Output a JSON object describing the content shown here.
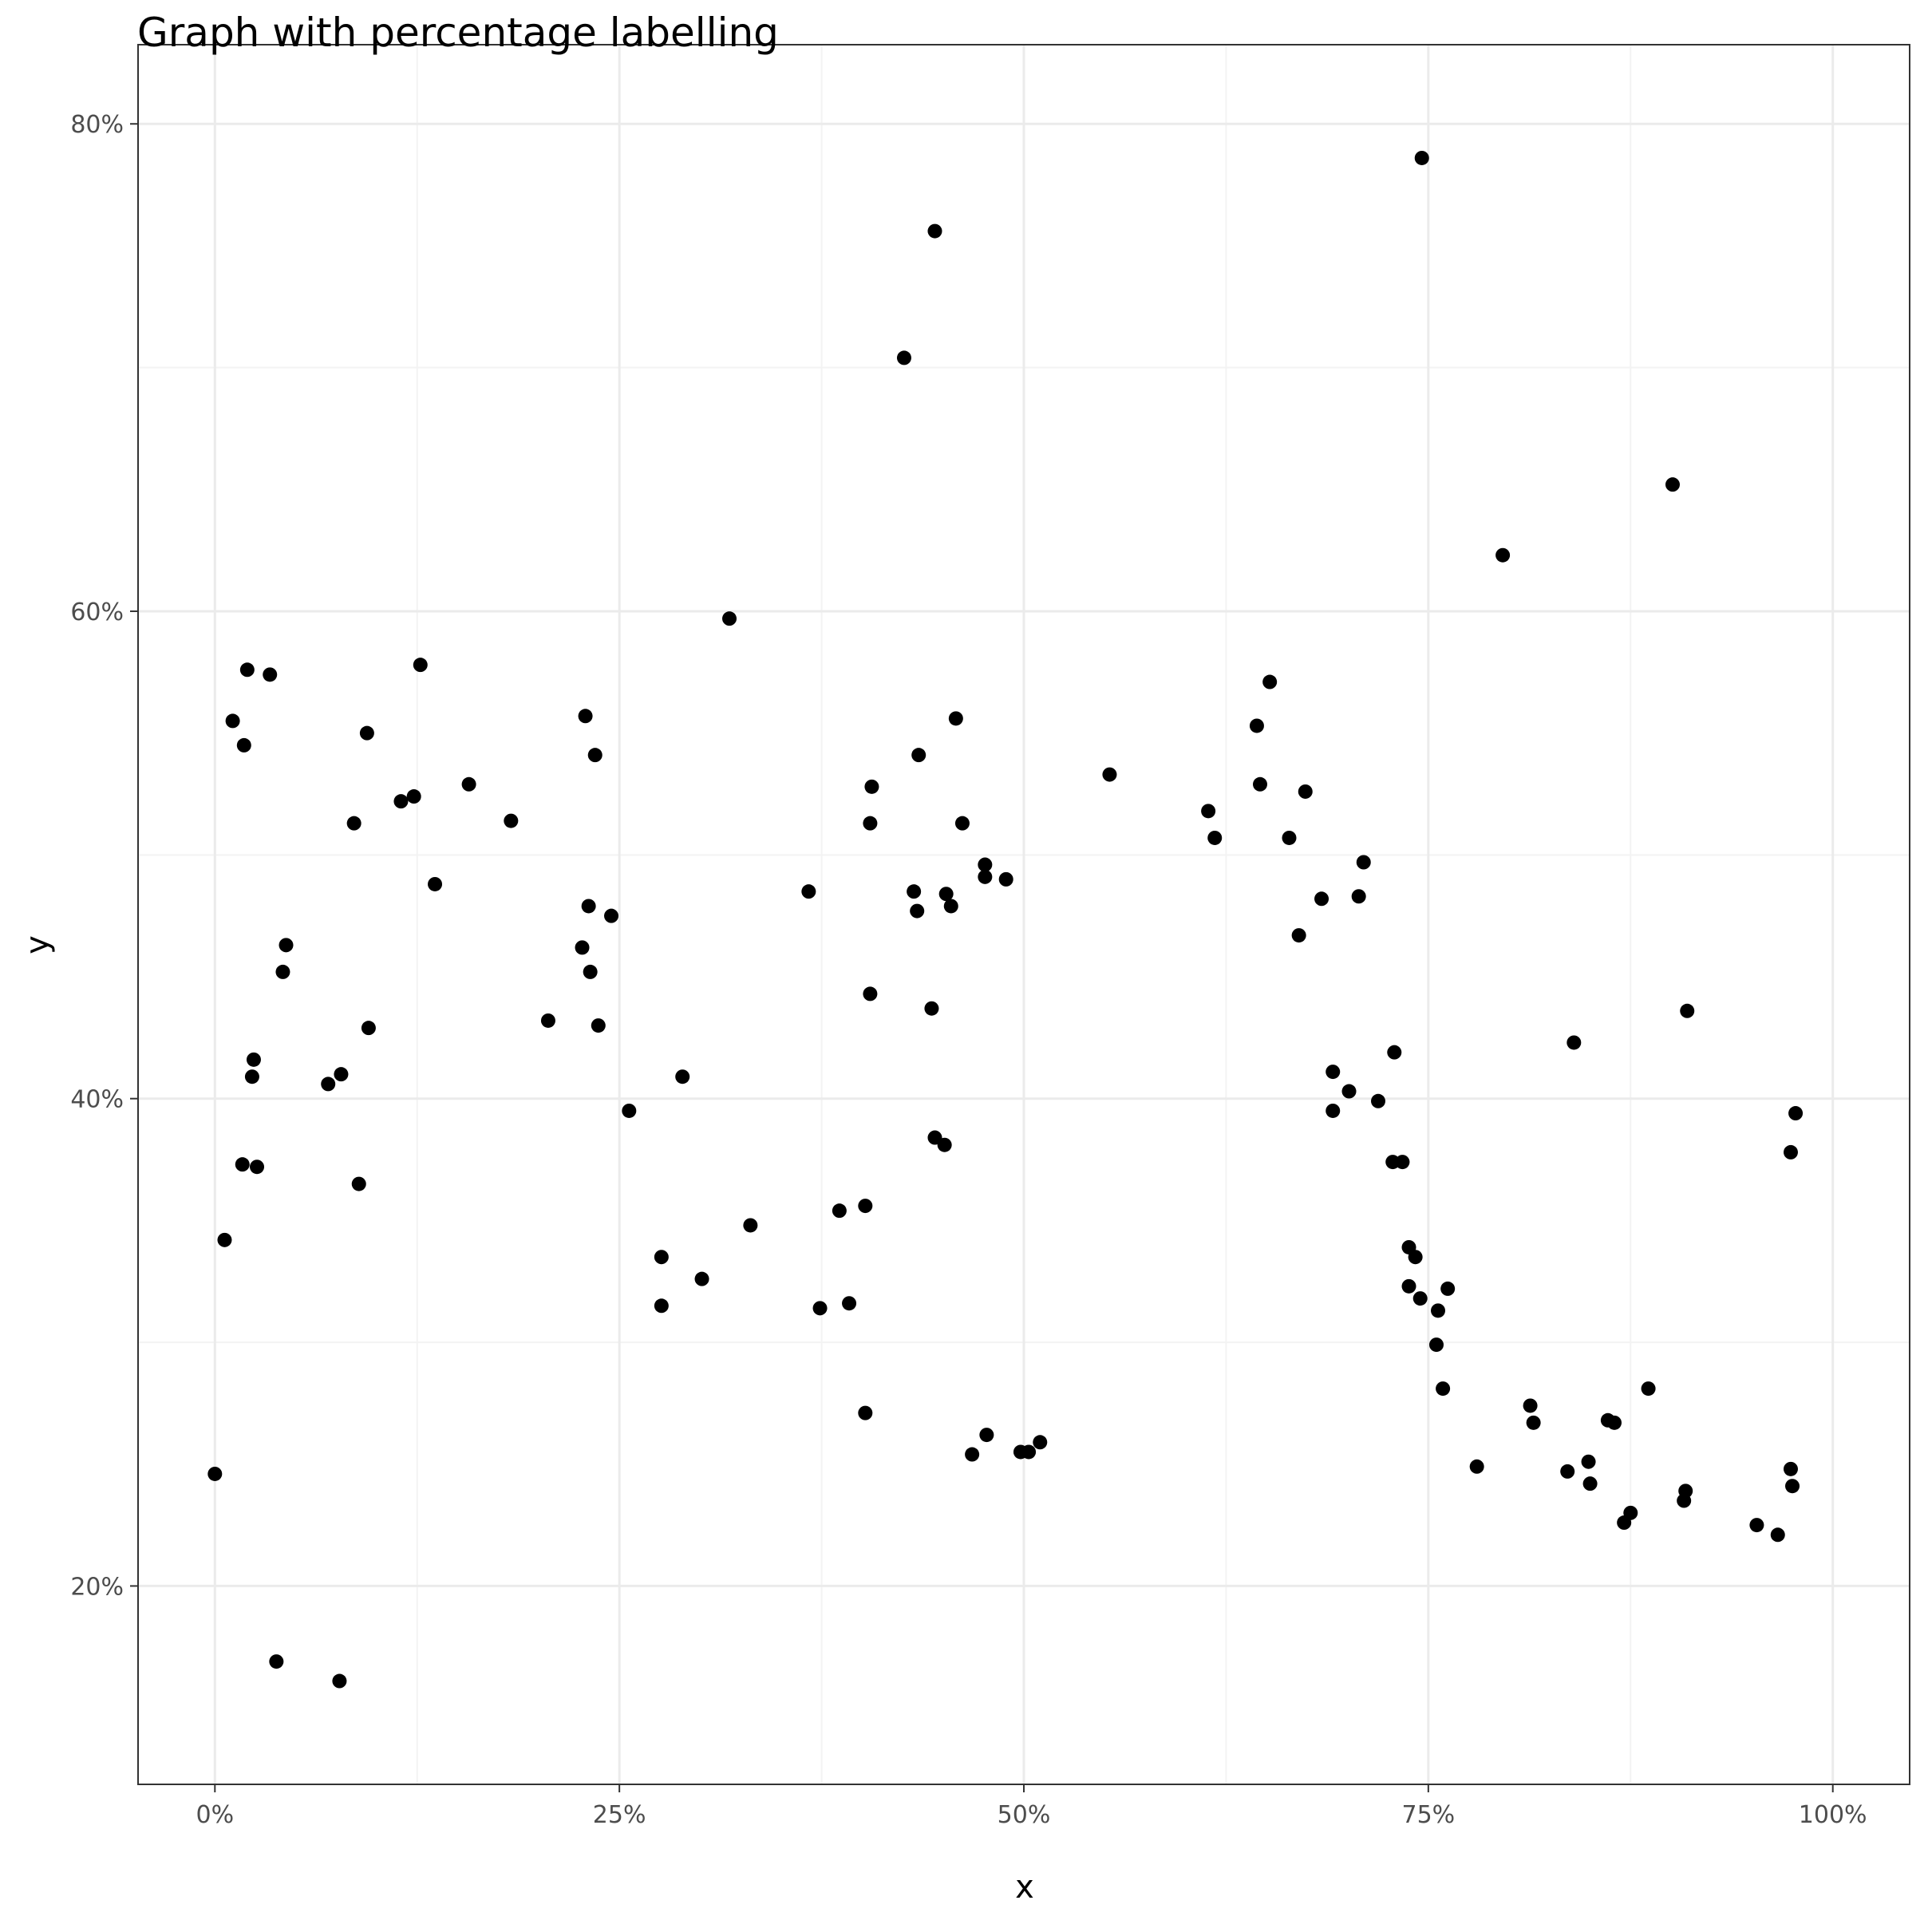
{
  "chart_data": {
    "type": "scatter",
    "title": "Graph with percentage labelling",
    "xlabel": "x",
    "ylabel": "y",
    "xlim": [
      -0.0475,
      1.0475
    ],
    "ylim": [
      0.1186,
      0.8325
    ],
    "x_ticks": [
      0,
      0.25,
      0.5,
      0.75,
      1.0
    ],
    "x_tick_labels": [
      "0%",
      "25%",
      "50%",
      "75%",
      "100%"
    ],
    "y_ticks": [
      0.2,
      0.4,
      0.6,
      0.8
    ],
    "y_tick_labels": [
      "20%",
      "40%",
      "60%",
      "80%"
    ],
    "grid": true,
    "legend": "none",
    "colors": {
      "points": "#000000",
      "panel_border": "#333333",
      "grid_major": "#ebebeb",
      "grid_minor": "#f3f3f3",
      "tick_text": "#4d4d4d"
    },
    "series": [
      {
        "x": [
          0.746,
          0.445,
          0.426,
          0.901,
          0.796,
          0.318,
          0.02,
          0.011,
          0.018,
          0.086,
          0.127,
          0.115,
          0.094,
          0.034,
          0.042,
          0.044,
          0.078,
          0.0,
          0.095,
          0.017,
          0.006,
          0.123,
          0.157,
          0.136,
          0.206,
          0.183,
          0.229,
          0.245,
          0.232,
          0.235,
          0.227,
          0.231,
          0.237,
          0.256,
          0.289,
          0.276,
          0.276,
          0.301,
          0.331,
          0.392,
          0.374,
          0.386,
          0.402,
          0.402,
          0.432,
          0.434,
          0.458,
          0.451,
          0.445,
          0.452,
          0.443,
          0.455,
          0.367,
          0.435,
          0.405,
          0.406,
          0.462,
          0.476,
          0.476,
          0.489,
          0.405,
          0.468,
          0.477,
          0.498,
          0.503,
          0.51,
          0.553,
          0.614,
          0.618,
          0.644,
          0.646,
          0.652,
          0.664,
          0.67,
          0.674,
          0.684,
          0.691,
          0.691,
          0.707,
          0.701,
          0.71,
          0.719,
          0.728,
          0.729,
          0.734,
          0.738,
          0.738,
          0.762,
          0.742,
          0.745,
          0.756,
          0.755,
          0.759,
          0.78,
          0.813,
          0.815,
          0.836,
          0.849,
          0.85,
          0.861,
          0.865,
          0.871,
          0.875,
          0.886,
          0.908,
          0.909,
          0.953,
          0.966,
          0.975,
          0.974,
          0.974,
          0.977,
          0.84,
          0.91,
          0.024,
          0.023,
          0.089,
          0.07,
          0.026,
          0.077,
          0.038
        ],
        "y": [
          0.786,
          0.756,
          0.704,
          0.652,
          0.623,
          0.597,
          0.576,
          0.555,
          0.545,
          0.513,
          0.578,
          0.522,
          0.55,
          0.574,
          0.452,
          0.463,
          0.41,
          0.246,
          0.429,
          0.373,
          0.342,
          0.524,
          0.529,
          0.488,
          0.432,
          0.514,
          0.557,
          0.475,
          0.452,
          0.541,
          0.462,
          0.479,
          0.43,
          0.395,
          0.409,
          0.335,
          0.315,
          0.326,
          0.348,
          0.316,
          0.314,
          0.354,
          0.356,
          0.271,
          0.485,
          0.477,
          0.556,
          0.381,
          0.384,
          0.484,
          0.437,
          0.479,
          0.485,
          0.541,
          0.513,
          0.528,
          0.513,
          0.491,
          0.496,
          0.49,
          0.443,
          0.254,
          0.262,
          0.255,
          0.255,
          0.259,
          0.533,
          0.518,
          0.507,
          0.553,
          0.529,
          0.571,
          0.507,
          0.467,
          0.526,
          0.482,
          0.411,
          0.395,
          0.483,
          0.403,
          0.497,
          0.399,
          0.374,
          0.419,
          0.374,
          0.339,
          0.323,
          0.322,
          0.335,
          0.318,
          0.313,
          0.299,
          0.281,
          0.249,
          0.274,
          0.267,
          0.247,
          0.251,
          0.242,
          0.268,
          0.267,
          0.226,
          0.23,
          0.281,
          0.235,
          0.239,
          0.225,
          0.221,
          0.241,
          0.248,
          0.378,
          0.394,
          0.423,
          0.436,
          0.416,
          0.409,
          0.365,
          0.406,
          0.372,
          0.161,
          0.169
        ]
      }
    ]
  }
}
